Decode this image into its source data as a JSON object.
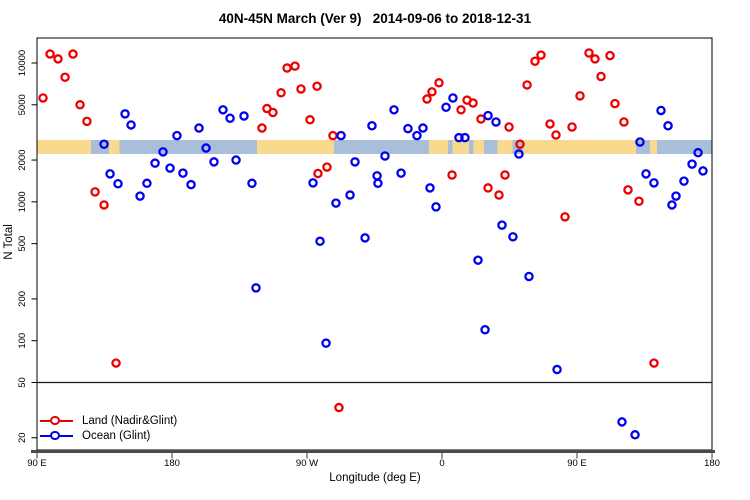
{
  "chart_data": {
    "type": "scatter",
    "title": "40N-45N March (Ver 9)   2014-09-06 to 2018-12-31",
    "xlabel": "Longitude (deg E)",
    "ylabel": "N Total",
    "x_axis": {
      "range_cumulative_deg_east": [
        90,
        540
      ],
      "ticks": [
        90,
        180,
        270,
        360,
        450,
        540
      ],
      "tick_labels": [
        "90 E",
        "180",
        "90 W",
        "0",
        "90 E",
        "180"
      ]
    },
    "y_axis": {
      "scale": "log",
      "ticks": [
        10000,
        5000,
        2000,
        1000,
        500,
        200,
        100,
        50,
        20
      ],
      "tick_labels": [
        "10000",
        "5000",
        "2000",
        "1000",
        "500",
        "200",
        "100",
        "50",
        "20"
      ]
    },
    "reference_line_y": 50,
    "series": [
      {
        "name": "Land (Nadir&Glint)",
        "color": "#ee0000",
        "points": [
          [
            98.7,
            11600
          ],
          [
            104,
            10700
          ],
          [
            114,
            11600
          ],
          [
            108.7,
            7900
          ],
          [
            94,
            5600
          ],
          [
            118.7,
            5000
          ],
          [
            123.3,
            3800
          ],
          [
            128.7,
            1180
          ],
          [
            134.7,
            950
          ],
          [
            142.7,
            69
          ],
          [
            240,
            3400
          ],
          [
            243.3,
            4700
          ],
          [
            247.3,
            4400
          ],
          [
            252.7,
            6100
          ],
          [
            256.7,
            9200
          ],
          [
            262,
            9500
          ],
          [
            266,
            6500
          ],
          [
            272,
            3900
          ],
          [
            276.7,
            6800
          ],
          [
            277.3,
            1600
          ],
          [
            283.3,
            1780
          ],
          [
            287.3,
            3000
          ],
          [
            291.3,
            33
          ],
          [
            350,
            5500
          ],
          [
            353.3,
            6200
          ],
          [
            358,
            7200
          ],
          [
            366.7,
            1560
          ],
          [
            372.7,
            4600
          ],
          [
            376.7,
            5400
          ],
          [
            380.7,
            5150
          ],
          [
            386,
            3950
          ],
          [
            390.7,
            1260
          ],
          [
            398,
            1120
          ],
          [
            402,
            1560
          ],
          [
            404.7,
            3460
          ],
          [
            412,
            2600
          ],
          [
            416.7,
            6950
          ],
          [
            422,
            10300
          ],
          [
            426,
            11400
          ],
          [
            432,
            3640
          ],
          [
            436,
            3030
          ],
          [
            442,
            780
          ],
          [
            446.7,
            3460
          ],
          [
            452,
            5800
          ],
          [
            458,
            11800
          ],
          [
            462,
            10700
          ],
          [
            466,
            8000
          ],
          [
            472,
            11300
          ],
          [
            475.3,
            5100
          ],
          [
            481.3,
            3760
          ],
          [
            484,
            1220
          ],
          [
            491.3,
            1010
          ],
          [
            501.3,
            69
          ]
        ]
      },
      {
        "name": "Ocean (Glint)",
        "color": "#0000ee",
        "points": [
          [
            134.7,
            2600
          ],
          [
            138.7,
            1590
          ],
          [
            144,
            1350
          ],
          [
            148.7,
            4300
          ],
          [
            152.7,
            3580
          ],
          [
            158.7,
            1100
          ],
          [
            163.3,
            1360
          ],
          [
            168.7,
            1900
          ],
          [
            174,
            2290
          ],
          [
            178.7,
            1750
          ],
          [
            183.3,
            3000
          ],
          [
            187.3,
            1610
          ],
          [
            192.7,
            1330
          ],
          [
            198,
            3400
          ],
          [
            202.7,
            2440
          ],
          [
            208,
            1940
          ],
          [
            214,
            4600
          ],
          [
            218.7,
            4000
          ],
          [
            222.7,
            2000
          ],
          [
            228,
            4150
          ],
          [
            233.3,
            1360
          ],
          [
            236,
            240
          ],
          [
            274,
            1370
          ],
          [
            278.7,
            520
          ],
          [
            282.7,
            96
          ],
          [
            289.3,
            980
          ],
          [
            292.7,
            3000
          ],
          [
            298.7,
            1120
          ],
          [
            302,
            1940
          ],
          [
            308.7,
            550
          ],
          [
            313.3,
            3530
          ],
          [
            316.7,
            1540
          ],
          [
            317.3,
            1360
          ],
          [
            322,
            2140
          ],
          [
            328,
            4600
          ],
          [
            332.7,
            1610
          ],
          [
            337.3,
            3370
          ],
          [
            343.3,
            3000
          ],
          [
            347.3,
            3400
          ],
          [
            352,
            1260
          ],
          [
            356,
            920
          ],
          [
            362.7,
            4800
          ],
          [
            367.3,
            5600
          ],
          [
            371.3,
            2900
          ],
          [
            375.3,
            2900
          ],
          [
            384,
            380
          ],
          [
            388.7,
            120
          ],
          [
            390.7,
            4180
          ],
          [
            396,
            3760
          ],
          [
            400,
            680
          ],
          [
            407.3,
            560
          ],
          [
            411.3,
            2210
          ],
          [
            418,
            290
          ],
          [
            436.7,
            62
          ],
          [
            480,
            26
          ],
          [
            488.7,
            21
          ],
          [
            492,
            2700
          ],
          [
            496,
            1590
          ],
          [
            501.3,
            1370
          ],
          [
            506,
            4550
          ],
          [
            510.7,
            3530
          ],
          [
            513.3,
            950
          ],
          [
            516,
            1100
          ],
          [
            521.3,
            1410
          ],
          [
            526.7,
            1870
          ],
          [
            530.7,
            2260
          ],
          [
            534,
            1670
          ]
        ]
      }
    ],
    "map_band": {
      "description": "40N-45N land/ocean strip drawn across plot near N=2500",
      "land_color": "#f8d98e",
      "ocean_color": "#a9bfd9",
      "segments": [
        {
          "from": 90,
          "to": 126,
          "surface": "land"
        },
        {
          "from": 126,
          "to": 138,
          "surface": "ocean"
        },
        {
          "from": 138,
          "to": 145,
          "surface": "land"
        },
        {
          "from": 145,
          "to": 236.7,
          "surface": "ocean"
        },
        {
          "from": 236.7,
          "to": 288,
          "surface": "land"
        },
        {
          "from": 288,
          "to": 351.3,
          "surface": "ocean"
        },
        {
          "from": 351.3,
          "to": 364,
          "surface": "land"
        },
        {
          "from": 364,
          "to": 367,
          "surface": "ocean"
        },
        {
          "from": 367,
          "to": 378,
          "surface": "land"
        },
        {
          "from": 378,
          "to": 381,
          "surface": "ocean"
        },
        {
          "from": 381,
          "to": 388,
          "surface": "land"
        },
        {
          "from": 388,
          "to": 397,
          "surface": "ocean"
        },
        {
          "from": 397,
          "to": 407,
          "surface": "land"
        },
        {
          "from": 407,
          "to": 414,
          "surface": "ocean"
        },
        {
          "from": 414,
          "to": 489.3,
          "surface": "land"
        },
        {
          "from": 489.3,
          "to": 498.7,
          "surface": "ocean"
        },
        {
          "from": 498.7,
          "to": 503.3,
          "surface": "land"
        },
        {
          "from": 503.3,
          "to": 540,
          "surface": "ocean"
        }
      ]
    }
  },
  "legend": {
    "items": [
      {
        "label": "Land (Nadir&Glint)",
        "color": "#ee0000"
      },
      {
        "label": "Ocean (Glint)",
        "color": "#0000ee"
      }
    ]
  }
}
